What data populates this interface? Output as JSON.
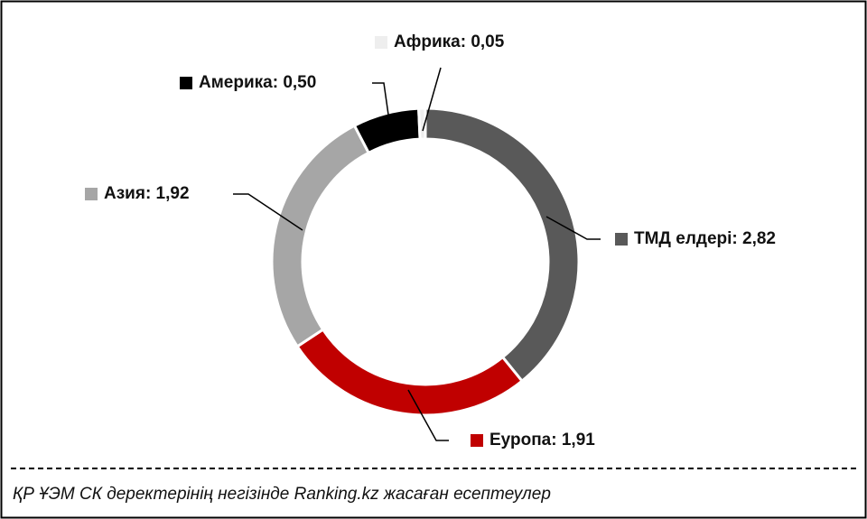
{
  "chart_data": {
    "type": "donut",
    "categories": [
      "ТМД елдері",
      "Еуропа",
      "Азия",
      "Америка",
      "Африка"
    ],
    "values": [
      2.82,
      1.91,
      1.92,
      0.5,
      0.05
    ],
    "value_labels": [
      "2,82",
      "1,91",
      "1,92",
      "0,50",
      "0,05"
    ],
    "label_separator": ": ",
    "colors": [
      "#595959",
      "#c00000",
      "#a6a6a6",
      "#000000",
      "#eeeeee"
    ],
    "source": "ҚР ҰЭМ СК деректерінің негізінде Ranking.kz жасаған есептеулер"
  }
}
